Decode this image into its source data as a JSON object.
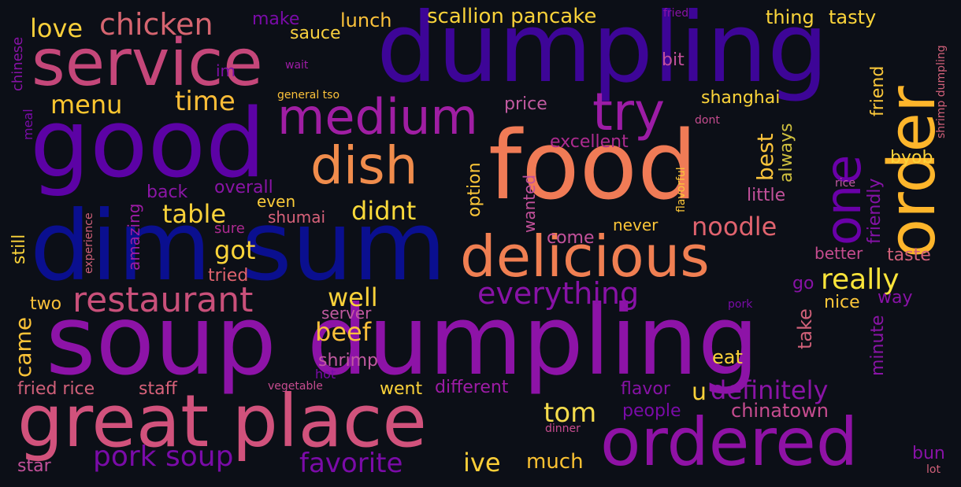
{
  "background": "#0c0f17",
  "words": [
    {
      "text": "dumpling",
      "color": "#3d0597"
    },
    {
      "text": "soup dumpling",
      "color": "#8d13a7"
    },
    {
      "text": "food",
      "color": "#f07b56"
    },
    {
      "text": "dim sum",
      "color": "#0a0f8f"
    },
    {
      "text": "good",
      "color": "#5c02a5"
    },
    {
      "text": "service",
      "color": "#c5477a"
    },
    {
      "text": "great place",
      "color": "#d1527c"
    },
    {
      "text": "delicious",
      "color": "#f07f52"
    },
    {
      "text": "ordered",
      "color": "#8f12a5"
    },
    {
      "text": "order",
      "color": "#fdb52b"
    },
    {
      "text": "one",
      "color": "#6a00a8"
    },
    {
      "text": "medium",
      "color": "#a01ea3"
    },
    {
      "text": "dish",
      "color": "#f08c4c"
    },
    {
      "text": "try",
      "color": "#9c1ca6"
    },
    {
      "text": "restaurant",
      "color": "#c9507a"
    },
    {
      "text": "pork soup",
      "color": "#7a0ba8"
    },
    {
      "text": "everything",
      "color": "#8812a6"
    },
    {
      "text": "chicken",
      "color": "#d66570"
    },
    {
      "text": "scallion pancake",
      "color": "#f9d23a"
    },
    {
      "text": "love",
      "color": "#fad03b"
    },
    {
      "text": "menu",
      "color": "#fcc62f"
    },
    {
      "text": "time",
      "color": "#fdbd37"
    },
    {
      "text": "table",
      "color": "#f9d23a"
    },
    {
      "text": "didnt",
      "color": "#fada3a"
    },
    {
      "text": "got",
      "color": "#fcd53a"
    },
    {
      "text": "really",
      "color": "#fbe43a"
    },
    {
      "text": "noodle",
      "color": "#e0636e"
    },
    {
      "text": "definitely",
      "color": "#8a14a6"
    },
    {
      "text": "favorite",
      "color": "#7b0ba8"
    },
    {
      "text": "tom",
      "color": "#f4db4c"
    },
    {
      "text": "well",
      "color": "#fbd23a"
    },
    {
      "text": "beef",
      "color": "#fbc03a"
    },
    {
      "text": "ive",
      "color": "#fcce38"
    },
    {
      "text": "much",
      "color": "#fcc232"
    },
    {
      "text": "chinatown",
      "color": "#c64c8f"
    },
    {
      "text": "came",
      "color": "#fcc338"
    },
    {
      "text": "shanghai",
      "color": "#fcd43a"
    },
    {
      "text": "best",
      "color": "#fbc43c"
    },
    {
      "text": "always",
      "color": "#d0c13f"
    },
    {
      "text": "excellent",
      "color": "#ad2b8f"
    },
    {
      "text": "sauce",
      "color": "#f7d03f"
    },
    {
      "text": "lunch",
      "color": "#fbc13a"
    },
    {
      "text": "make",
      "color": "#7a0ba8"
    },
    {
      "text": "thing",
      "color": "#fad33a"
    },
    {
      "text": "tasty",
      "color": "#fbd43a"
    },
    {
      "text": "friend",
      "color": "#fcc83a"
    },
    {
      "text": "friendly",
      "color": "#8512a6"
    },
    {
      "text": "byob",
      "color": "#fbd23a"
    },
    {
      "text": "price",
      "color": "#c15aa0"
    },
    {
      "text": "bit",
      "color": "#c3519b"
    },
    {
      "text": "im",
      "color": "#7e10a6"
    },
    {
      "text": "option",
      "color": "#fcc638"
    },
    {
      "text": "overall",
      "color": "#8a14a6"
    },
    {
      "text": "back",
      "color": "#8b16a6"
    },
    {
      "text": "even",
      "color": "#fbcc3a"
    },
    {
      "text": "shumai",
      "color": "#d8627a"
    },
    {
      "text": "sure",
      "color": "#ab2a8f"
    },
    {
      "text": "tried",
      "color": "#e0636e"
    },
    {
      "text": "amazing",
      "color": "#9e1ca6"
    },
    {
      "text": "wanted",
      "color": "#c3519b"
    },
    {
      "text": "come",
      "color": "#c3519b"
    },
    {
      "text": "never",
      "color": "#fcc638"
    },
    {
      "text": "little",
      "color": "#c3519b"
    },
    {
      "text": "better",
      "color": "#c64c8f"
    },
    {
      "text": "taste",
      "color": "#d06079"
    },
    {
      "text": "nice",
      "color": "#fcc63a"
    },
    {
      "text": "way",
      "color": "#8812a6"
    },
    {
      "text": "go",
      "color": "#8812a6"
    },
    {
      "text": "take",
      "color": "#d06079"
    },
    {
      "text": "minute",
      "color": "#8a14a6"
    },
    {
      "text": "eat",
      "color": "#fbd23a"
    },
    {
      "text": "u",
      "color": "#fbd23a"
    },
    {
      "text": "flavor",
      "color": "#8812a6"
    },
    {
      "text": "people",
      "color": "#7a0ba8"
    },
    {
      "text": "different",
      "color": "#9e1ca6"
    },
    {
      "text": "went",
      "color": "#fbd23a"
    },
    {
      "text": "server",
      "color": "#c15aa0"
    },
    {
      "text": "shrimp",
      "color": "#c15aa0"
    },
    {
      "text": "hot",
      "color": "#7a0ba8"
    },
    {
      "text": "vegetable",
      "color": "#c64c8f"
    },
    {
      "text": "two",
      "color": "#fbc13a"
    },
    {
      "text": "fried rice",
      "color": "#d06079"
    },
    {
      "text": "staff",
      "color": "#d8627a"
    },
    {
      "text": "star",
      "color": "#c3519b"
    },
    {
      "text": "still",
      "color": "#fcd43a"
    },
    {
      "text": "experience",
      "color": "#d06079"
    },
    {
      "text": "meal",
      "color": "#7a0ba8"
    },
    {
      "text": "chinese",
      "color": "#8812a6"
    },
    {
      "text": "wait",
      "color": "#9e1ca6"
    },
    {
      "text": "general tso",
      "color": "#fbc13a"
    },
    {
      "text": "fried",
      "color": "#8812a6"
    },
    {
      "text": "dont",
      "color": "#c64c8f"
    },
    {
      "text": "flavorful",
      "color": "#fcc638"
    },
    {
      "text": "rice",
      "color": "#c15aa0"
    },
    {
      "text": "pork",
      "color": "#7a0ba8"
    },
    {
      "text": "shrimp dumpling",
      "color": "#d06079"
    },
    {
      "text": "bun",
      "color": "#8812a6"
    },
    {
      "text": "lot",
      "color": "#d06079"
    },
    {
      "text": "dinner",
      "color": "#c64c8f"
    }
  ]
}
